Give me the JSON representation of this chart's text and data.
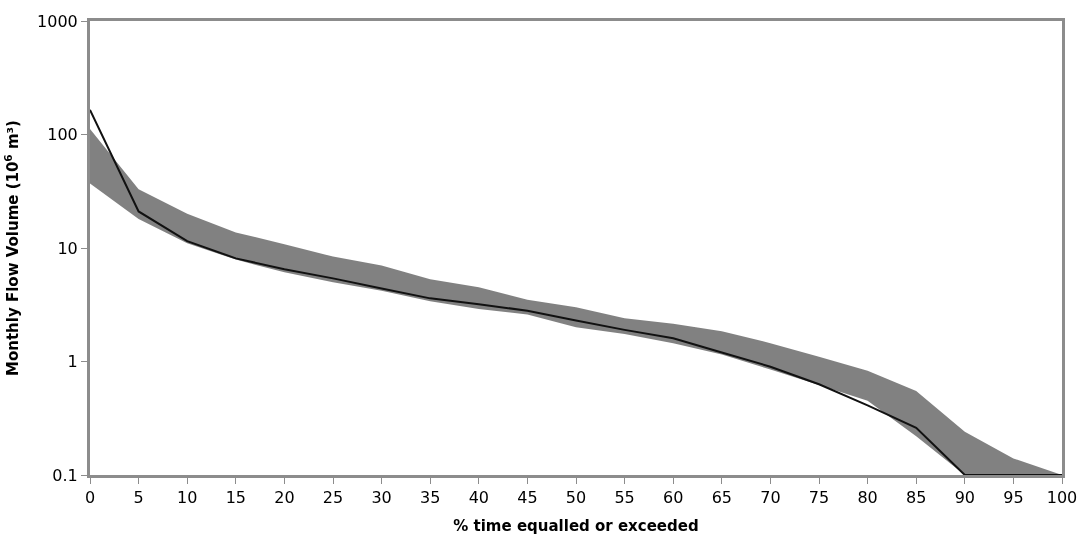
{
  "chart_data": {
    "type": "line",
    "xlabel": "% time equalled or exceeded",
    "ylabel": "Monthly Flow Volume (10$^{6}$ m³)",
    "x": [
      0,
      5,
      10,
      15,
      20,
      25,
      30,
      35,
      40,
      45,
      50,
      55,
      60,
      65,
      70,
      75,
      80,
      85,
      90,
      95,
      100
    ],
    "series": [
      {
        "color": "#111111",
        "values": [
          165,
          21,
          11.5,
          8.1,
          6.5,
          5.4,
          4.4,
          3.6,
          3.2,
          2.8,
          2.3,
          1.9,
          1.6,
          1.2,
          0.9,
          0.63,
          0.41,
          0.26,
          0.1,
          0.1,
          0.1
        ],
        "upper": [
          112,
          33,
          20,
          13.7,
          10.8,
          8.4,
          7.0,
          5.3,
          4.5,
          3.5,
          3.0,
          2.4,
          2.15,
          1.85,
          1.45,
          1.1,
          0.83,
          0.55,
          0.24,
          0.14,
          0.1
        ],
        "lower": [
          37,
          18,
          11,
          7.9,
          6.1,
          5.0,
          4.2,
          3.4,
          2.9,
          2.6,
          2.0,
          1.75,
          1.45,
          1.15,
          0.85,
          0.62,
          0.45,
          0.22,
          0.1,
          0.1,
          0.1
        ]
      }
    ],
    "log": "y",
    "xlim": [
      0,
      100
    ],
    "xticks": [
      0,
      5,
      10,
      15,
      20,
      25,
      30,
      35,
      40,
      45,
      50,
      55,
      60,
      65,
      70,
      75,
      80,
      85,
      90,
      95,
      100
    ],
    "ylim": [
      0.1,
      1000
    ],
    "yticks": [
      0.1,
      1,
      10,
      100,
      1000
    ],
    "marker": "none",
    "line_style": "solid"
  }
}
